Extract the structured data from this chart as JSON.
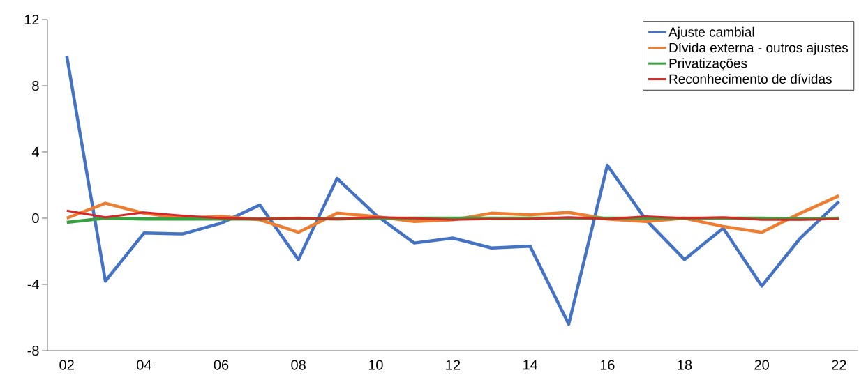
{
  "chart_data": {
    "type": "line",
    "categories": [
      "02",
      null,
      "04",
      null,
      "06",
      null,
      "08",
      null,
      "10",
      null,
      "12",
      null,
      "14",
      null,
      "16",
      null,
      "18",
      null,
      "20",
      null,
      "22"
    ],
    "series": [
      {
        "name": "Ajuste cambial",
        "color": "#4472c4",
        "values": [
          9.8,
          -3.8,
          -0.9,
          -0.95,
          -0.3,
          0.8,
          -2.5,
          2.4,
          0.2,
          -1.5,
          -1.2,
          -1.8,
          -1.7,
          -6.4,
          3.2,
          -0.1,
          -2.5,
          -0.6,
          -4.1,
          -1.2,
          1.0
        ]
      },
      {
        "name": "Dívida externa - outros ajustes",
        "color": "#ed7d31",
        "values": [
          0.0,
          0.9,
          0.3,
          0.0,
          0.1,
          -0.1,
          -0.85,
          0.3,
          0.1,
          -0.2,
          -0.1,
          0.3,
          0.2,
          0.35,
          -0.05,
          -0.2,
          0.0,
          -0.5,
          -0.85,
          0.3,
          1.35
        ]
      },
      {
        "name": "Privatizações",
        "color": "#3aa142",
        "values": [
          -0.25,
          0.0,
          -0.05,
          -0.05,
          -0.05,
          -0.05,
          0.0,
          -0.05,
          0.0,
          0.0,
          0.0,
          0.0,
          0.0,
          0.0,
          0.0,
          0.0,
          0.0,
          0.0,
          0.0,
          -0.05,
          0.0
        ]
      },
      {
        "name": "Reconhecimento de dívidas",
        "color": "#d62728",
        "values": [
          0.45,
          0.05,
          0.35,
          0.15,
          0.0,
          -0.05,
          0.0,
          -0.05,
          0.05,
          0.0,
          -0.1,
          -0.05,
          -0.05,
          0.05,
          -0.05,
          0.1,
          0.0,
          0.05,
          -0.1,
          -0.1,
          -0.05
        ]
      }
    ],
    "ylim": [
      -8,
      12
    ],
    "yticks": [
      -8,
      -4,
      0,
      4,
      8,
      12
    ],
    "legend": "top right",
    "grid": false,
    "marker": "none",
    "line_style": "solid"
  }
}
